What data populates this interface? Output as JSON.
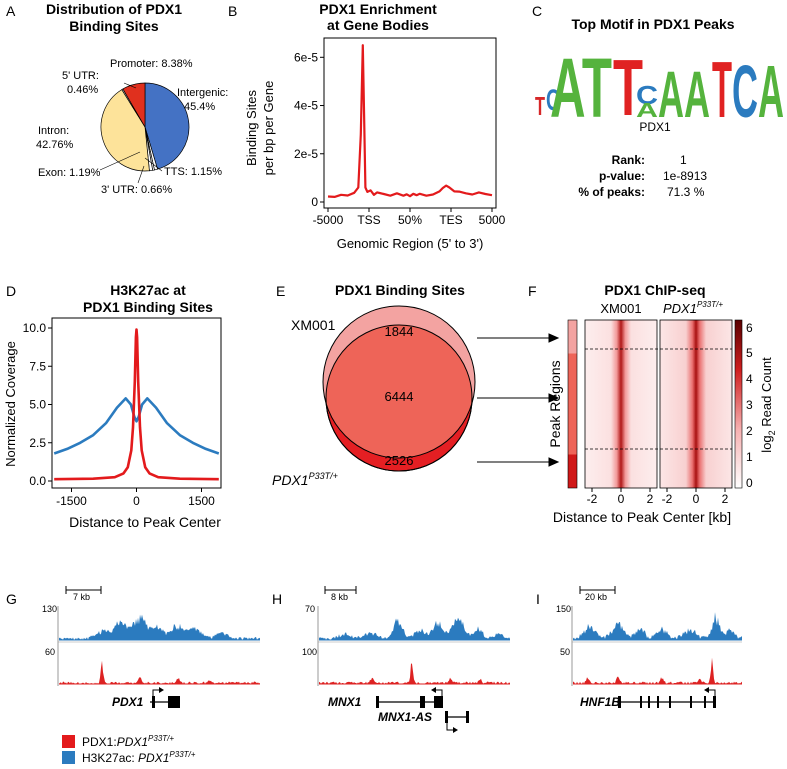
{
  "panel_letters": {
    "A": "A",
    "B": "B",
    "C": "C",
    "D": "D",
    "E": "E",
    "F": "F",
    "G": "G",
    "H": "H",
    "I": "I"
  },
  "panel_a": {
    "title_line1": "Distribution of PDX1",
    "title_line2": "Binding Sites",
    "labels": {
      "promoter": "Promoter: 8.38%",
      "utr5_line1": "5' UTR:",
      "utr5_line2": "0.46%",
      "intergenic_line1": "Intergenic:",
      "intergenic_line2": "45.4%",
      "intron_line1": "Intron:",
      "intron_line2": "42.76%",
      "exon": "Exon: 1.19%",
      "tts": "TTS: 1.15%",
      "utr3": "3' UTR: 0.66%"
    }
  },
  "panel_b": {
    "title_line1": "PDX1 Enrichment",
    "title_line2": "at Gene Bodies",
    "ylabel_line1": "Binding Sites",
    "ylabel_line2": "per bp per Gene",
    "xlabel": "Genomic Region (5' to 3')"
  },
  "panel_c": {
    "title": "Top Motif in PDX1 Peaks",
    "motif_name": "PDX1",
    "rank_label": "Rank:",
    "rank_value": "1",
    "pvalue_label": "p-value:",
    "pvalue_value": "1e-8913",
    "peaks_label": "% of peaks:",
    "peaks_value": "71.3 %"
  },
  "panel_d": {
    "title_line1": "H3K27ac at",
    "title_line2": "PDX1 Binding Sites",
    "ylabel": "Normalized Coverage",
    "xlabel": "Distance to Peak Center"
  },
  "panel_e": {
    "title": "PDX1 Binding Sites",
    "label_top": "XM001",
    "label_bottom_base": "PDX1",
    "label_bottom_sup": "P33T/+",
    "count_top": "1844",
    "count_middle": "6444",
    "count_bottom": "2526"
  },
  "panel_f": {
    "title": "PDX1 ChIP-seq",
    "col1": "XM001",
    "col2_base": "PDX1",
    "col2_sup": "P33T/+",
    "ylabel": "Peak Regions",
    "xlabel": "Distance to Peak Center [kb]",
    "xticks": [
      "-2",
      "0",
      "2",
      "-2",
      "0",
      "2"
    ],
    "colorbar_label_base": "log",
    "colorbar_label_sub": "2",
    "colorbar_label_rest": " Read Count",
    "colorbar_ticks": [
      "6",
      "5",
      "4",
      "3",
      "2",
      "1",
      "0"
    ]
  },
  "tracks": [
    {
      "scale": "7 kb",
      "top_max": "130",
      "bottom_max": "60",
      "genes": [
        {
          "name": "PDX1"
        }
      ]
    },
    {
      "scale": "8 kb",
      "top_max": "70",
      "bottom_max": "100",
      "genes": [
        {
          "name": "MNX1"
        },
        {
          "name": "MNX1-AS"
        }
      ]
    },
    {
      "scale": "20 kb",
      "top_max": "150",
      "bottom_max": "50",
      "genes": [
        {
          "name": "HNF1B"
        }
      ]
    }
  ],
  "legend": {
    "red_base": "PDX1:",
    "red_italic": "PDX1",
    "red_sup": "P33T/+",
    "blue_base": "H3K27ac: ",
    "blue_italic": "PDX1",
    "blue_sup": "P33T/+"
  },
  "colors": {
    "red": "#e31a1c",
    "blue": "#2b7bbf",
    "yellow": "#fde39a",
    "track_red": "#dd2222",
    "track_blue": "#2b7bbf"
  },
  "chart_data": [
    {
      "type": "pie",
      "title": "Distribution of PDX1 Binding Sites",
      "categories": [
        "Intergenic",
        "TTS",
        "3' UTR",
        "Exon",
        "Intron",
        "5' UTR",
        "Promoter"
      ],
      "values": [
        45.4,
        1.15,
        0.66,
        1.19,
        42.76,
        0.46,
        8.38
      ]
    },
    {
      "type": "line",
      "title": "PDX1 Enrichment at Gene Bodies",
      "xlabel": "Genomic Region (5' to 3')",
      "ylabel": "Binding Sites per bp per Gene",
      "x_ticks": [
        "-5000",
        "TSS",
        "50%",
        "TES",
        "5000"
      ],
      "y_ticks": [
        "0",
        "2e-5",
        "4e-5",
        "6e-5"
      ],
      "ylim": [
        0,
        6.8e-05
      ],
      "x": [
        0,
        0.4,
        0.8,
        1.2,
        1.6,
        1.85,
        2.0,
        2.12,
        2.2,
        2.28,
        2.4,
        2.6,
        2.8,
        3.0,
        3.4,
        3.8,
        4.2,
        4.6,
        4.8,
        5.0,
        5.2,
        5.4,
        5.6,
        6.0,
        6.4,
        6.8,
        7.0,
        7.2,
        7.4,
        7.7,
        8.0,
        8.4,
        8.8,
        9.2,
        9.6,
        10.0
      ],
      "y": [
        2.3e-06,
        2.1e-06,
        3e-06,
        2.7e-06,
        3.8e-06,
        6e-06,
        2.8e-05,
        6.5e-05,
        3.6e-05,
        6e-06,
        4.2e-06,
        4.8e-06,
        3e-06,
        4e-06,
        3.3e-06,
        2.6e-06,
        3.6e-06,
        2.6e-06,
        3.2e-06,
        2.4e-06,
        3.4e-06,
        2.8e-06,
        3.4e-06,
        2.6e-06,
        3.1e-06,
        4.4e-06,
        5.8e-06,
        6.8e-06,
        6e-06,
        4.4e-06,
        4.3e-06,
        3.6e-06,
        3.1e-06,
        4e-06,
        3.3e-06,
        2.8e-06
      ]
    },
    {
      "type": "line",
      "title": "H3K27ac at PDX1 Binding Sites",
      "xlabel": "Distance to Peak Center",
      "ylabel": "Normalized Coverage",
      "x_ticks": [
        -1500,
        0,
        1500
      ],
      "y_ticks": [
        0.0,
        2.5,
        5.0,
        7.5,
        10.0
      ],
      "xlim": [
        -1950,
        1950
      ],
      "ylim": [
        0,
        10.3
      ],
      "series": [
        {
          "name": "H3K27ac",
          "color": "#2b7bbf",
          "x": [
            -1900,
            -1600,
            -1300,
            -1000,
            -700,
            -450,
            -250,
            -130,
            -50,
            0,
            50,
            130,
            250,
            450,
            700,
            1000,
            1300,
            1600,
            1900
          ],
          "y": [
            1.8,
            2.1,
            2.5,
            3.0,
            3.8,
            4.8,
            5.4,
            5.0,
            4.2,
            3.9,
            4.2,
            5.0,
            5.4,
            4.8,
            3.8,
            3.0,
            2.5,
            2.1,
            1.8
          ]
        },
        {
          "name": "PDX1",
          "color": "#e31a1c",
          "x": [
            -1900,
            -1000,
            -500,
            -300,
            -200,
            -120,
            -80,
            -40,
            -15,
            0,
            15,
            40,
            80,
            120,
            200,
            300,
            500,
            1000,
            1900
          ],
          "y": [
            0.12,
            0.15,
            0.25,
            0.5,
            0.9,
            2.0,
            3.5,
            6.5,
            9.4,
            9.9,
            9.4,
            6.5,
            3.5,
            2.0,
            0.9,
            0.5,
            0.25,
            0.15,
            0.12
          ]
        }
      ]
    }
  ]
}
